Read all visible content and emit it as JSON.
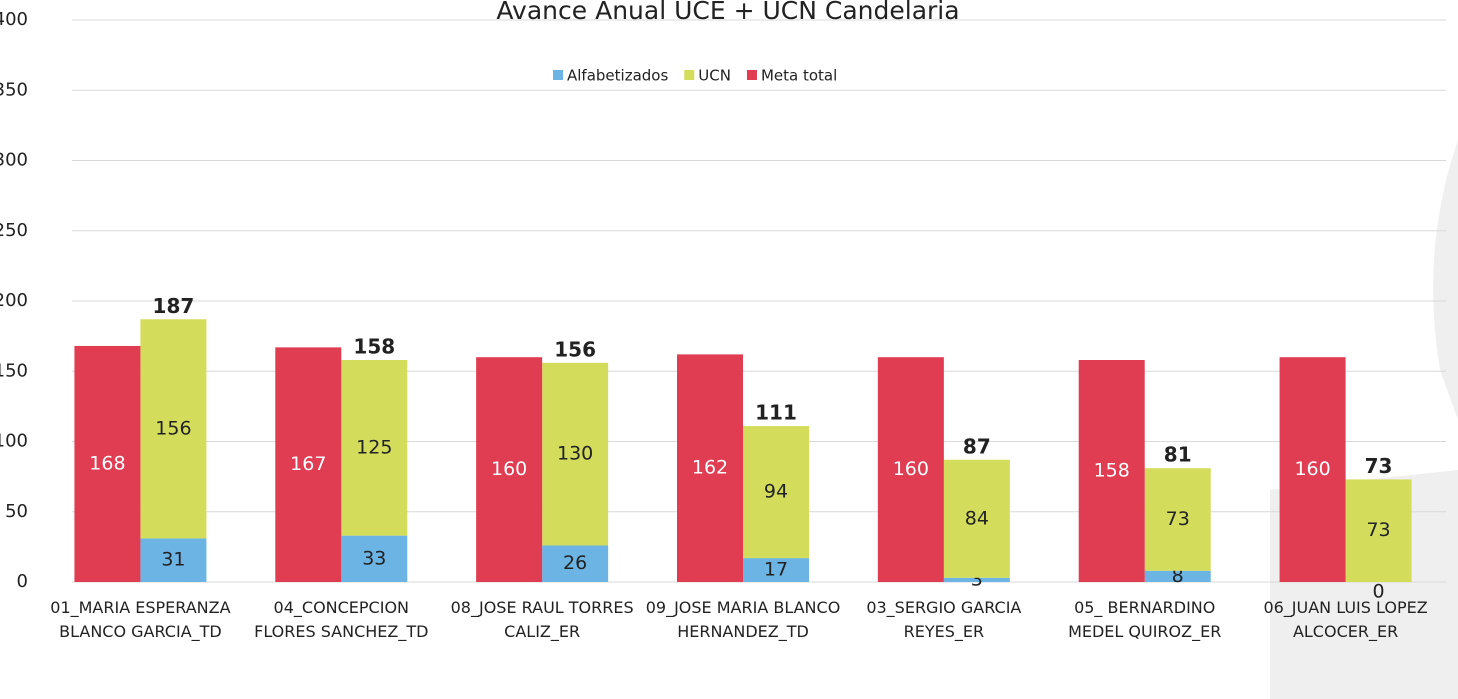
{
  "chart_data": {
    "type": "bar",
    "title": "Avance Anual UCE + UCN Candelaria",
    "categories": [
      "01_MARIA ESPERANZA BLANCO GARCIA_TD",
      "04_CONCEPCION FLORES SANCHEZ_TD",
      "08_JOSE RAUL TORRES CALIZ_ER",
      "09_JOSE MARIA BLANCO HERNANDEZ_TD",
      "03_SERGIO GARCIA REYES_ER",
      "05_ BERNARDINO MEDEL QUIROZ_ER",
      "06_JUAN LUIS LOPEZ ALCOCER_ER"
    ],
    "series": [
      {
        "name": "Alfabetizados",
        "color": "#6cb4e4",
        "stacked": true,
        "values": [
          31,
          33,
          26,
          17,
          3,
          8,
          0
        ]
      },
      {
        "name": "UCN",
        "color": "#d4dc5c",
        "stacked": true,
        "values": [
          156,
          125,
          130,
          94,
          84,
          73,
          73
        ]
      },
      {
        "name": "Meta total",
        "color": "#e03c52",
        "stacked": false,
        "values": [
          168,
          167,
          160,
          162,
          160,
          158,
          160
        ]
      }
    ],
    "totals": [
      187,
      158,
      156,
      111,
      87,
      81,
      73
    ],
    "ylim": [
      0,
      400
    ],
    "yticks": [
      0,
      50,
      100,
      150,
      200,
      250,
      300,
      350,
      400
    ],
    "grid": true,
    "legend": "top"
  }
}
